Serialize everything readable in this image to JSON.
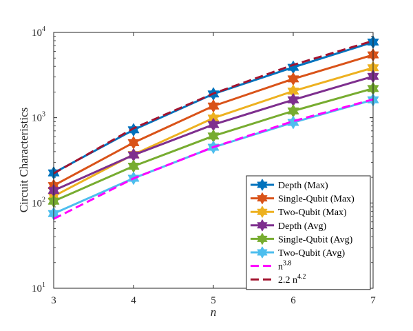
{
  "chart_data": {
    "type": "line",
    "title": "",
    "xlabel": "n",
    "ylabel": "Circuit Characteristics",
    "yscale": "log",
    "xlim": [
      3,
      7
    ],
    "ylim": [
      10,
      10000
    ],
    "x": [
      3,
      4,
      5,
      6,
      7
    ],
    "xticks": [
      "3",
      "4",
      "5",
      "6",
      "7"
    ],
    "yticks": [
      {
        "base": "10",
        "exp": "1"
      },
      {
        "base": "10",
        "exp": "2"
      },
      {
        "base": "10",
        "exp": "3"
      },
      {
        "base": "10",
        "exp": "4"
      }
    ],
    "legend_position": "bottom-right",
    "series": [
      {
        "name": "Depth (Max)",
        "color": "#0072BD",
        "style": "solid",
        "marker": "hexagram",
        "values": [
          225,
          720,
          1900,
          3900,
          7700
        ]
      },
      {
        "name": "Single-Qubit (Max)",
        "color": "#D95319",
        "style": "solid",
        "marker": "hexagram",
        "values": [
          160,
          510,
          1370,
          2850,
          5450
        ]
      },
      {
        "name": "Two-Qubit (Max)",
        "color": "#EDB120",
        "style": "solid",
        "marker": "hexagram",
        "values": [
          120,
          370,
          990,
          2050,
          3850
        ]
      },
      {
        "name": "Depth (Avg)",
        "color": "#7E2F8E",
        "style": "solid",
        "marker": "hexagram",
        "values": [
          140,
          365,
          830,
          1620,
          3050
        ]
      },
      {
        "name": "Single-Qubit (Avg)",
        "color": "#77AC30",
        "style": "solid",
        "marker": "hexagram",
        "values": [
          105,
          270,
          610,
          1200,
          2200
        ]
      },
      {
        "name": "Two-Qubit (Avg)",
        "color": "#4DBEEE",
        "style": "solid",
        "marker": "hexagram",
        "values": [
          75,
          195,
          450,
          880,
          1620
        ]
      },
      {
        "name": "n^{3.8}",
        "label_base": "n",
        "label_exp": "3.8",
        "color": "#FF00FF",
        "style": "dashed",
        "marker": "none",
        "values": [
          65,
          194,
          452,
          910,
          1640
        ]
      },
      {
        "name": "2.2 n^{4.2}",
        "label_base": "2.2 n",
        "label_exp": "4.2",
        "color": "#A2142F",
        "style": "dashed",
        "marker": "none",
        "values": [
          222,
          750,
          1920,
          4160,
          7970
        ]
      }
    ]
  }
}
